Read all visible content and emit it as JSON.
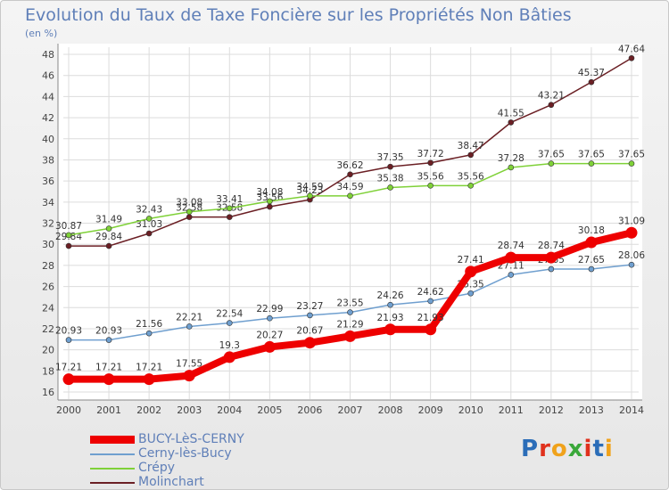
{
  "header": {
    "title": "Evolution du Taux de Taxe Foncière sur les Propriétés Non Bâties",
    "unit": "(en %)"
  },
  "logo": {
    "text": "Proxiti",
    "colors": [
      "#2b6db8",
      "#e0311d",
      "#f0a21b",
      "#3aa83a",
      "#e0311d",
      "#2b6db8",
      "#f0a21b"
    ]
  },
  "chart_data": {
    "type": "line",
    "title": "Evolution du Taux de Taxe Foncière sur les Propriétés Non Bâties",
    "ylabel": "(en %)",
    "xlabel": "",
    "x": [
      "2000",
      "2001",
      "2002",
      "2003",
      "2004",
      "2005",
      "2006",
      "2007",
      "2008",
      "2009",
      "2010",
      "2011",
      "2012",
      "2013",
      "2014"
    ],
    "ylim": [
      16,
      48
    ],
    "yticks": [
      16,
      18,
      20,
      22,
      24,
      26,
      28,
      30,
      32,
      34,
      36,
      38,
      40,
      42,
      44,
      46,
      48
    ],
    "grid": true,
    "series": [
      {
        "name": "Molinchart",
        "color": "#6b1f24",
        "emphasis": false,
        "values": [
          29.84,
          29.84,
          31.03,
          32.58,
          32.58,
          33.56,
          34.23,
          36.62,
          37.35,
          37.72,
          38.47,
          41.55,
          43.21,
          45.37,
          47.64
        ],
        "labels": [
          "29.84",
          "29.84",
          "31.03",
          "32.58",
          "32.58",
          "33.56",
          "34.23",
          "36.62",
          "37.35",
          "37.72",
          "38.47",
          "41.55",
          "43.21",
          "45.37",
          "47.64"
        ]
      },
      {
        "name": "Crépy",
        "color": "#7fd138",
        "emphasis": false,
        "values": [
          30.87,
          31.49,
          32.43,
          33.08,
          33.41,
          34.08,
          34.59,
          34.59,
          35.38,
          35.56,
          35.56,
          37.28,
          37.65,
          37.65,
          37.65
        ],
        "labels": [
          "30.87",
          "31.49",
          "32.43",
          "33.08",
          "33.41",
          "34.08",
          "34.59",
          "34.59",
          "35.38",
          "35.56",
          "35.56",
          "37.28",
          "37.65",
          "37.65",
          "37.65"
        ]
      },
      {
        "name": "Cerny-lès-Bucy",
        "color": "#6f9fcf",
        "emphasis": false,
        "values": [
          20.93,
          20.93,
          21.56,
          22.21,
          22.54,
          22.99,
          23.27,
          23.55,
          24.26,
          24.62,
          25.35,
          27.11,
          27.65,
          27.65,
          28.06
        ],
        "labels": [
          "20.93",
          "20.93",
          "21.56",
          "22.21",
          "22.54",
          "22.99",
          "23.27",
          "23.55",
          "24.26",
          "24.62",
          "25.35",
          "27.11",
          "27.65",
          "27.65",
          "28.06"
        ]
      },
      {
        "name": "BUCY-LèS-CERNY",
        "color": "#ee0000",
        "emphasis": true,
        "values": [
          17.21,
          17.21,
          17.21,
          17.55,
          19.3,
          20.27,
          20.67,
          21.29,
          21.93,
          21.93,
          27.41,
          28.74,
          28.74,
          30.18,
          31.09
        ],
        "labels": [
          "17.21",
          "17.21",
          "17.21",
          "17.55",
          "19.3",
          "20.27",
          "20.67",
          "21.29",
          "21.93",
          "21.93",
          "27.41",
          "28.74",
          "28.74",
          "30.18",
          "31.09"
        ]
      }
    ],
    "legend": {
      "placement": "bottom-left",
      "entries": [
        "BUCY-LèS-CERNY",
        "Cerny-lès-Bucy",
        "Crépy",
        "Molinchart"
      ]
    }
  }
}
